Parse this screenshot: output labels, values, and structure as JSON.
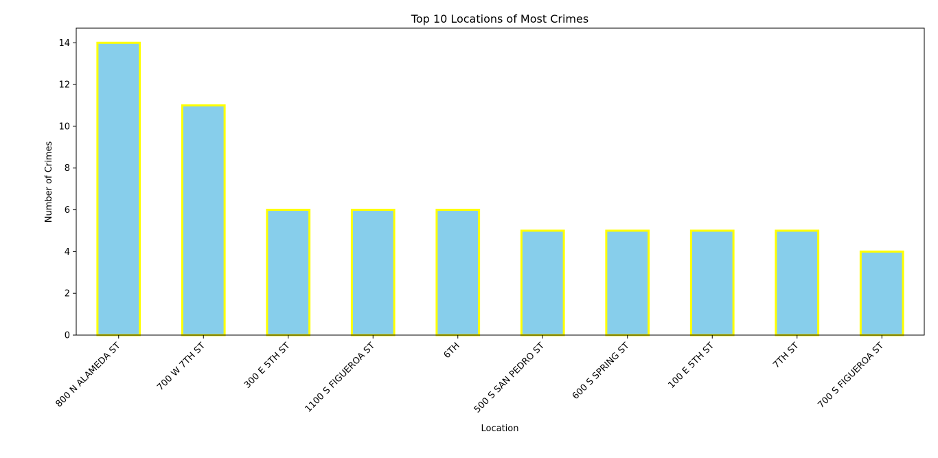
{
  "chart_data": {
    "type": "bar",
    "title": "Top 10 Locations of Most Crimes",
    "xlabel": "Location",
    "ylabel": "Number of Crimes",
    "categories": [
      "800 N ALAMEDA ST",
      "700 W 7TH ST",
      "300 E 5TH ST",
      "1100 S FIGUEROA ST",
      "6TH",
      "500 S SAN PEDRO ST",
      "600 S SPRING ST",
      "100 E 5TH ST",
      "7TH ST",
      "700 S FIGUEROA ST"
    ],
    "values": [
      14,
      11,
      6,
      6,
      6,
      5,
      5,
      5,
      5,
      4
    ],
    "ylim": [
      0,
      14.7
    ],
    "yticks": [
      0,
      2,
      4,
      6,
      8,
      10,
      12,
      14
    ],
    "bar_fill": "#87ceeb",
    "bar_edge": "#ffff00",
    "grid": false,
    "legend": "none"
  }
}
